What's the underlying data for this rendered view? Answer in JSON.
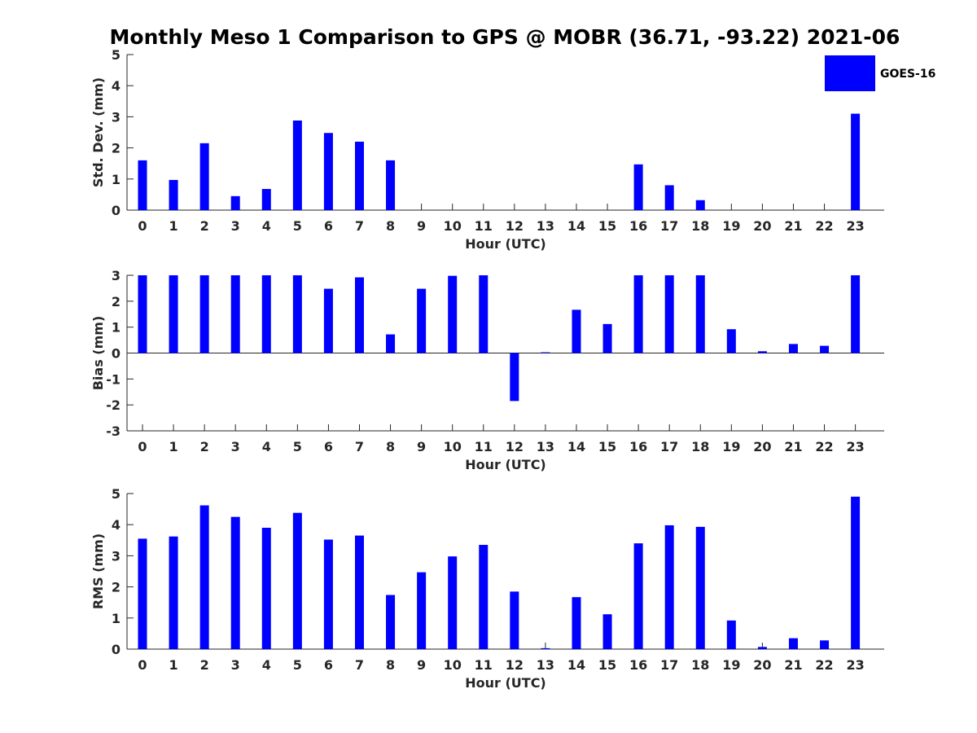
{
  "title": "Monthly Meso 1 Comparison to GPS @ MOBR (36.71, -93.22) 2021-06",
  "legend": {
    "label": "GOES-16",
    "color": "#0000ff"
  },
  "chart_data": [
    {
      "type": "bar",
      "name": "std-dev",
      "xlabel": "Hour (UTC)",
      "ylabel": "Std. Dev. (mm)",
      "ylim": [
        0,
        5
      ],
      "yticks": [
        "0",
        "1",
        "2",
        "3",
        "4",
        "5"
      ],
      "categories": [
        "0",
        "1",
        "2",
        "3",
        "4",
        "5",
        "6",
        "7",
        "8",
        "9",
        "10",
        "11",
        "12",
        "13",
        "14",
        "15",
        "16",
        "17",
        "18",
        "19",
        "20",
        "21",
        "22",
        "23"
      ],
      "series": [
        {
          "name": "GOES-16",
          "values": [
            1.6,
            0.97,
            2.15,
            0.45,
            0.68,
            2.88,
            2.48,
            2.2,
            1.6,
            0,
            0,
            0,
            0,
            0,
            0,
            0,
            1.47,
            0.8,
            0.32,
            0,
            0,
            0,
            0,
            3.1
          ]
        }
      ]
    },
    {
      "type": "bar",
      "name": "bias",
      "xlabel": "Hour (UTC)",
      "ylabel": "Bias (mm)",
      "ylim": [
        -3,
        3
      ],
      "yticks": [
        "-3",
        "-2",
        "-1",
        "0",
        "1",
        "2",
        "3"
      ],
      "categories": [
        "0",
        "1",
        "2",
        "3",
        "4",
        "5",
        "6",
        "7",
        "8",
        "9",
        "10",
        "11",
        "12",
        "13",
        "14",
        "15",
        "16",
        "17",
        "18",
        "19",
        "20",
        "21",
        "22",
        "23"
      ],
      "series": [
        {
          "name": "GOES-16",
          "values": [
            3.0,
            3.0,
            3.0,
            3.0,
            3.0,
            3.0,
            2.48,
            2.92,
            0.72,
            2.48,
            2.98,
            3.0,
            -1.85,
            0.03,
            1.67,
            1.12,
            3.0,
            3.0,
            3.0,
            0.92,
            0.07,
            0.35,
            0.28,
            3.0
          ]
        }
      ]
    },
    {
      "type": "bar",
      "name": "rms",
      "xlabel": "Hour (UTC)",
      "ylabel": "RMS (mm)",
      "ylim": [
        0,
        5
      ],
      "yticks": [
        "0",
        "1",
        "2",
        "3",
        "4",
        "5"
      ],
      "categories": [
        "0",
        "1",
        "2",
        "3",
        "4",
        "5",
        "6",
        "7",
        "8",
        "9",
        "10",
        "11",
        "12",
        "13",
        "14",
        "15",
        "16",
        "17",
        "18",
        "19",
        "20",
        "21",
        "22",
        "23"
      ],
      "series": [
        {
          "name": "GOES-16",
          "values": [
            3.55,
            3.62,
            4.62,
            4.25,
            3.9,
            4.38,
            3.52,
            3.65,
            1.74,
            2.47,
            2.98,
            3.35,
            1.85,
            0.03,
            1.67,
            1.12,
            3.4,
            3.98,
            3.93,
            0.92,
            0.07,
            0.35,
            0.28,
            4.9
          ]
        }
      ]
    }
  ]
}
